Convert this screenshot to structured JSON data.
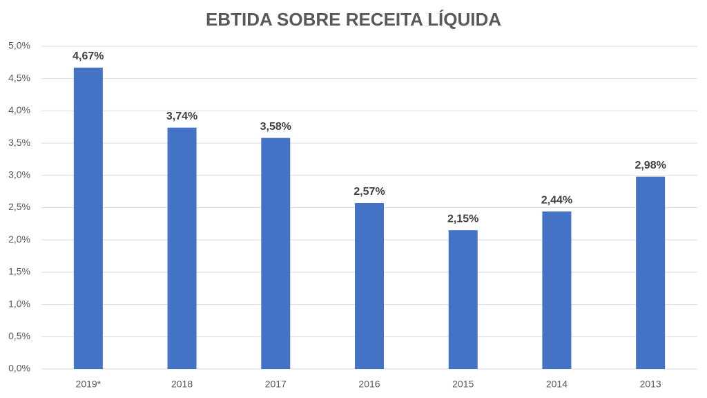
{
  "chart_data": {
    "type": "bar",
    "title": "EBTIDA SOBRE RECEITA LÍQUIDA",
    "categories": [
      "2019*",
      "2018",
      "2017",
      "2016",
      "2015",
      "2014",
      "2013"
    ],
    "values": [
      4.67,
      3.74,
      3.58,
      2.57,
      2.15,
      2.44,
      2.98
    ],
    "value_labels": [
      "4,67%",
      "3,74%",
      "3,58%",
      "2,57%",
      "2,15%",
      "2,44%",
      "2,98%"
    ],
    "color": "#4472c4",
    "ylim": [
      0,
      5
    ],
    "yticks": [
      {
        "value": 0,
        "label": "0,0%"
      },
      {
        "value": 0.5,
        "label": "0,5%"
      },
      {
        "value": 1,
        "label": "1,0%"
      },
      {
        "value": 1.5,
        "label": "1,5%"
      },
      {
        "value": 2,
        "label": "2,0%"
      },
      {
        "value": 2.5,
        "label": "2,5%"
      },
      {
        "value": 3,
        "label": "3,0%"
      },
      {
        "value": 3.5,
        "label": "3,5%"
      },
      {
        "value": 4,
        "label": "4,0%"
      },
      {
        "value": 4.5,
        "label": "4,5%"
      },
      {
        "value": 5,
        "label": "5,0%"
      }
    ],
    "grid": true
  }
}
